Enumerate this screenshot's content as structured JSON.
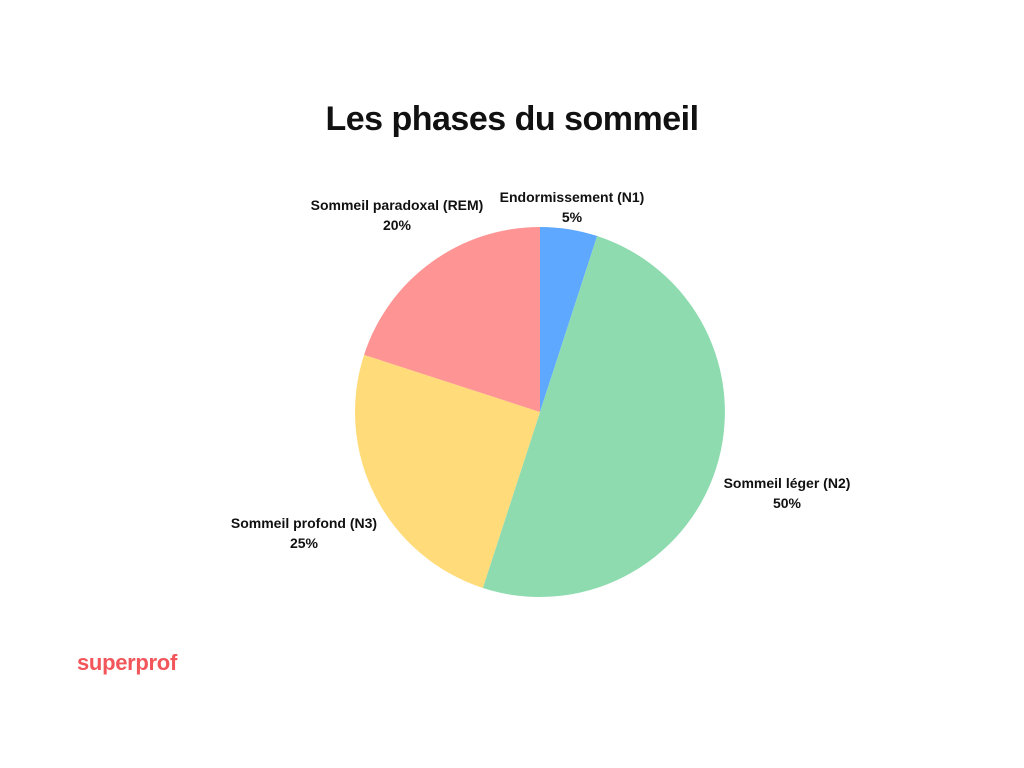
{
  "chart_data": {
    "type": "pie",
    "title": "Les phases du sommeil",
    "categories": [
      "Endormissement (N1)",
      "Sommeil léger (N2)",
      "Sommeil profond (N3)",
      "Sommeil paradoxal (REM)"
    ],
    "values": [
      5,
      50,
      25,
      20
    ],
    "value_labels": [
      "5%",
      "50%",
      "25%",
      "20%"
    ],
    "colors": [
      "#5ea8ff",
      "#8edbb0",
      "#ffdb7a",
      "#ff9494"
    ],
    "start_angle": "top",
    "direction": "clockwise"
  },
  "brand": {
    "name": "superprof",
    "color": "#f2565a"
  }
}
